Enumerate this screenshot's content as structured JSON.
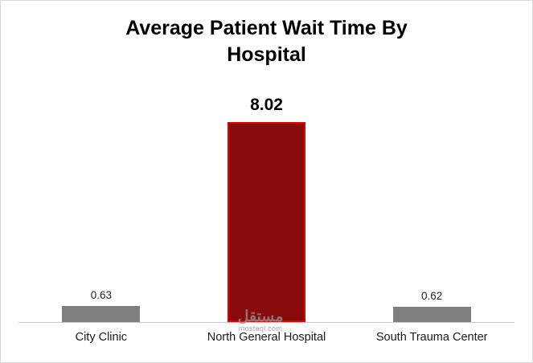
{
  "chart_data": {
    "type": "bar",
    "title": "Average Patient Wait Time By Hospital",
    "categories": [
      "City Clinic",
      "North General Hospital",
      "South Trauma Center"
    ],
    "values": [
      0.63,
      8.02,
      0.62
    ],
    "value_labels": [
      "0.63",
      "8.02",
      "0.62"
    ],
    "xlabel": "",
    "ylabel": "",
    "ylim": [
      0,
      9
    ],
    "grid": false,
    "legend": false,
    "bar_colors": [
      "#7f7f7f",
      "#8a0b0b",
      "#7f7f7f"
    ],
    "bar_border_colors": [
      "transparent",
      "#e30000",
      "transparent"
    ],
    "background_color": "#ffffff",
    "border_color": "#d9d9d9"
  },
  "watermark": {
    "name": "مستقل",
    "url": "mostaql.com"
  }
}
